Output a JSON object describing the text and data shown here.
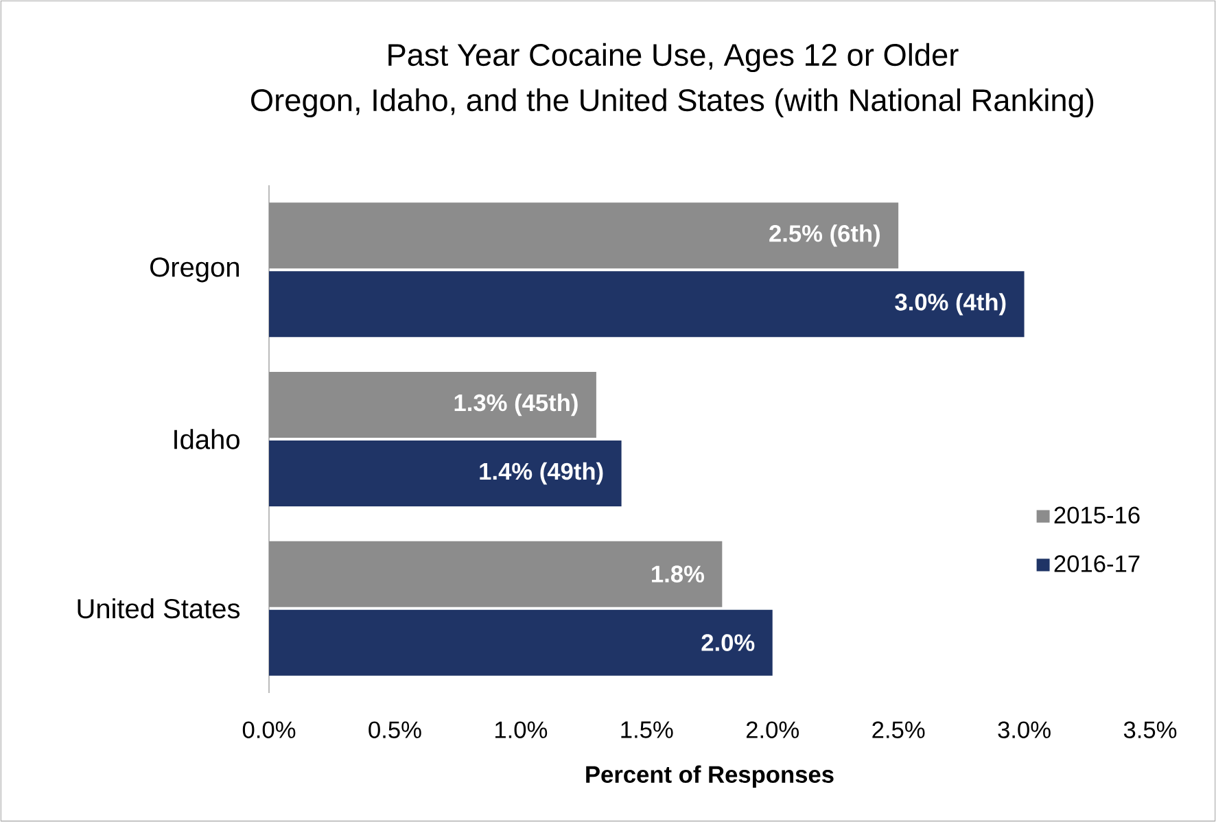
{
  "chart_data": {
    "type": "bar",
    "orientation": "horizontal",
    "title": "Past Year Cocaine Use, Ages 12 or Older",
    "subtitle": "Oregon, Idaho, and the United States (with National Ranking)",
    "xlabel": "Percent of Responses",
    "categories": [
      "Oregon",
      "Idaho",
      "United States"
    ],
    "series": [
      {
        "name": "2015-16",
        "color": "#8c8c8c",
        "values": [
          2.5,
          1.3,
          1.8
        ],
        "value_labels": [
          "2.5% (6th)",
          "1.3% (45th)",
          "1.8%"
        ]
      },
      {
        "name": "2016-17",
        "color": "#1f3466",
        "values": [
          3.0,
          1.4,
          2.0
        ],
        "value_labels": [
          "3.0% (4th)",
          "1.4% (49th)",
          "2.0%"
        ]
      }
    ],
    "xlim": [
      0,
      3.5
    ],
    "xticks": [
      {
        "value": 0,
        "label": "0.0%"
      },
      {
        "value": 0.5,
        "label": "0.5%"
      },
      {
        "value": 1,
        "label": "1.0%"
      },
      {
        "value": 1.5,
        "label": "1.5%"
      },
      {
        "value": 2,
        "label": "2.0%"
      },
      {
        "value": 2.5,
        "label": "2.5%"
      },
      {
        "value": 3,
        "label": "3.0%"
      },
      {
        "value": 3.5,
        "label": "3.5%"
      }
    ],
    "legend": "right",
    "grid": false
  }
}
